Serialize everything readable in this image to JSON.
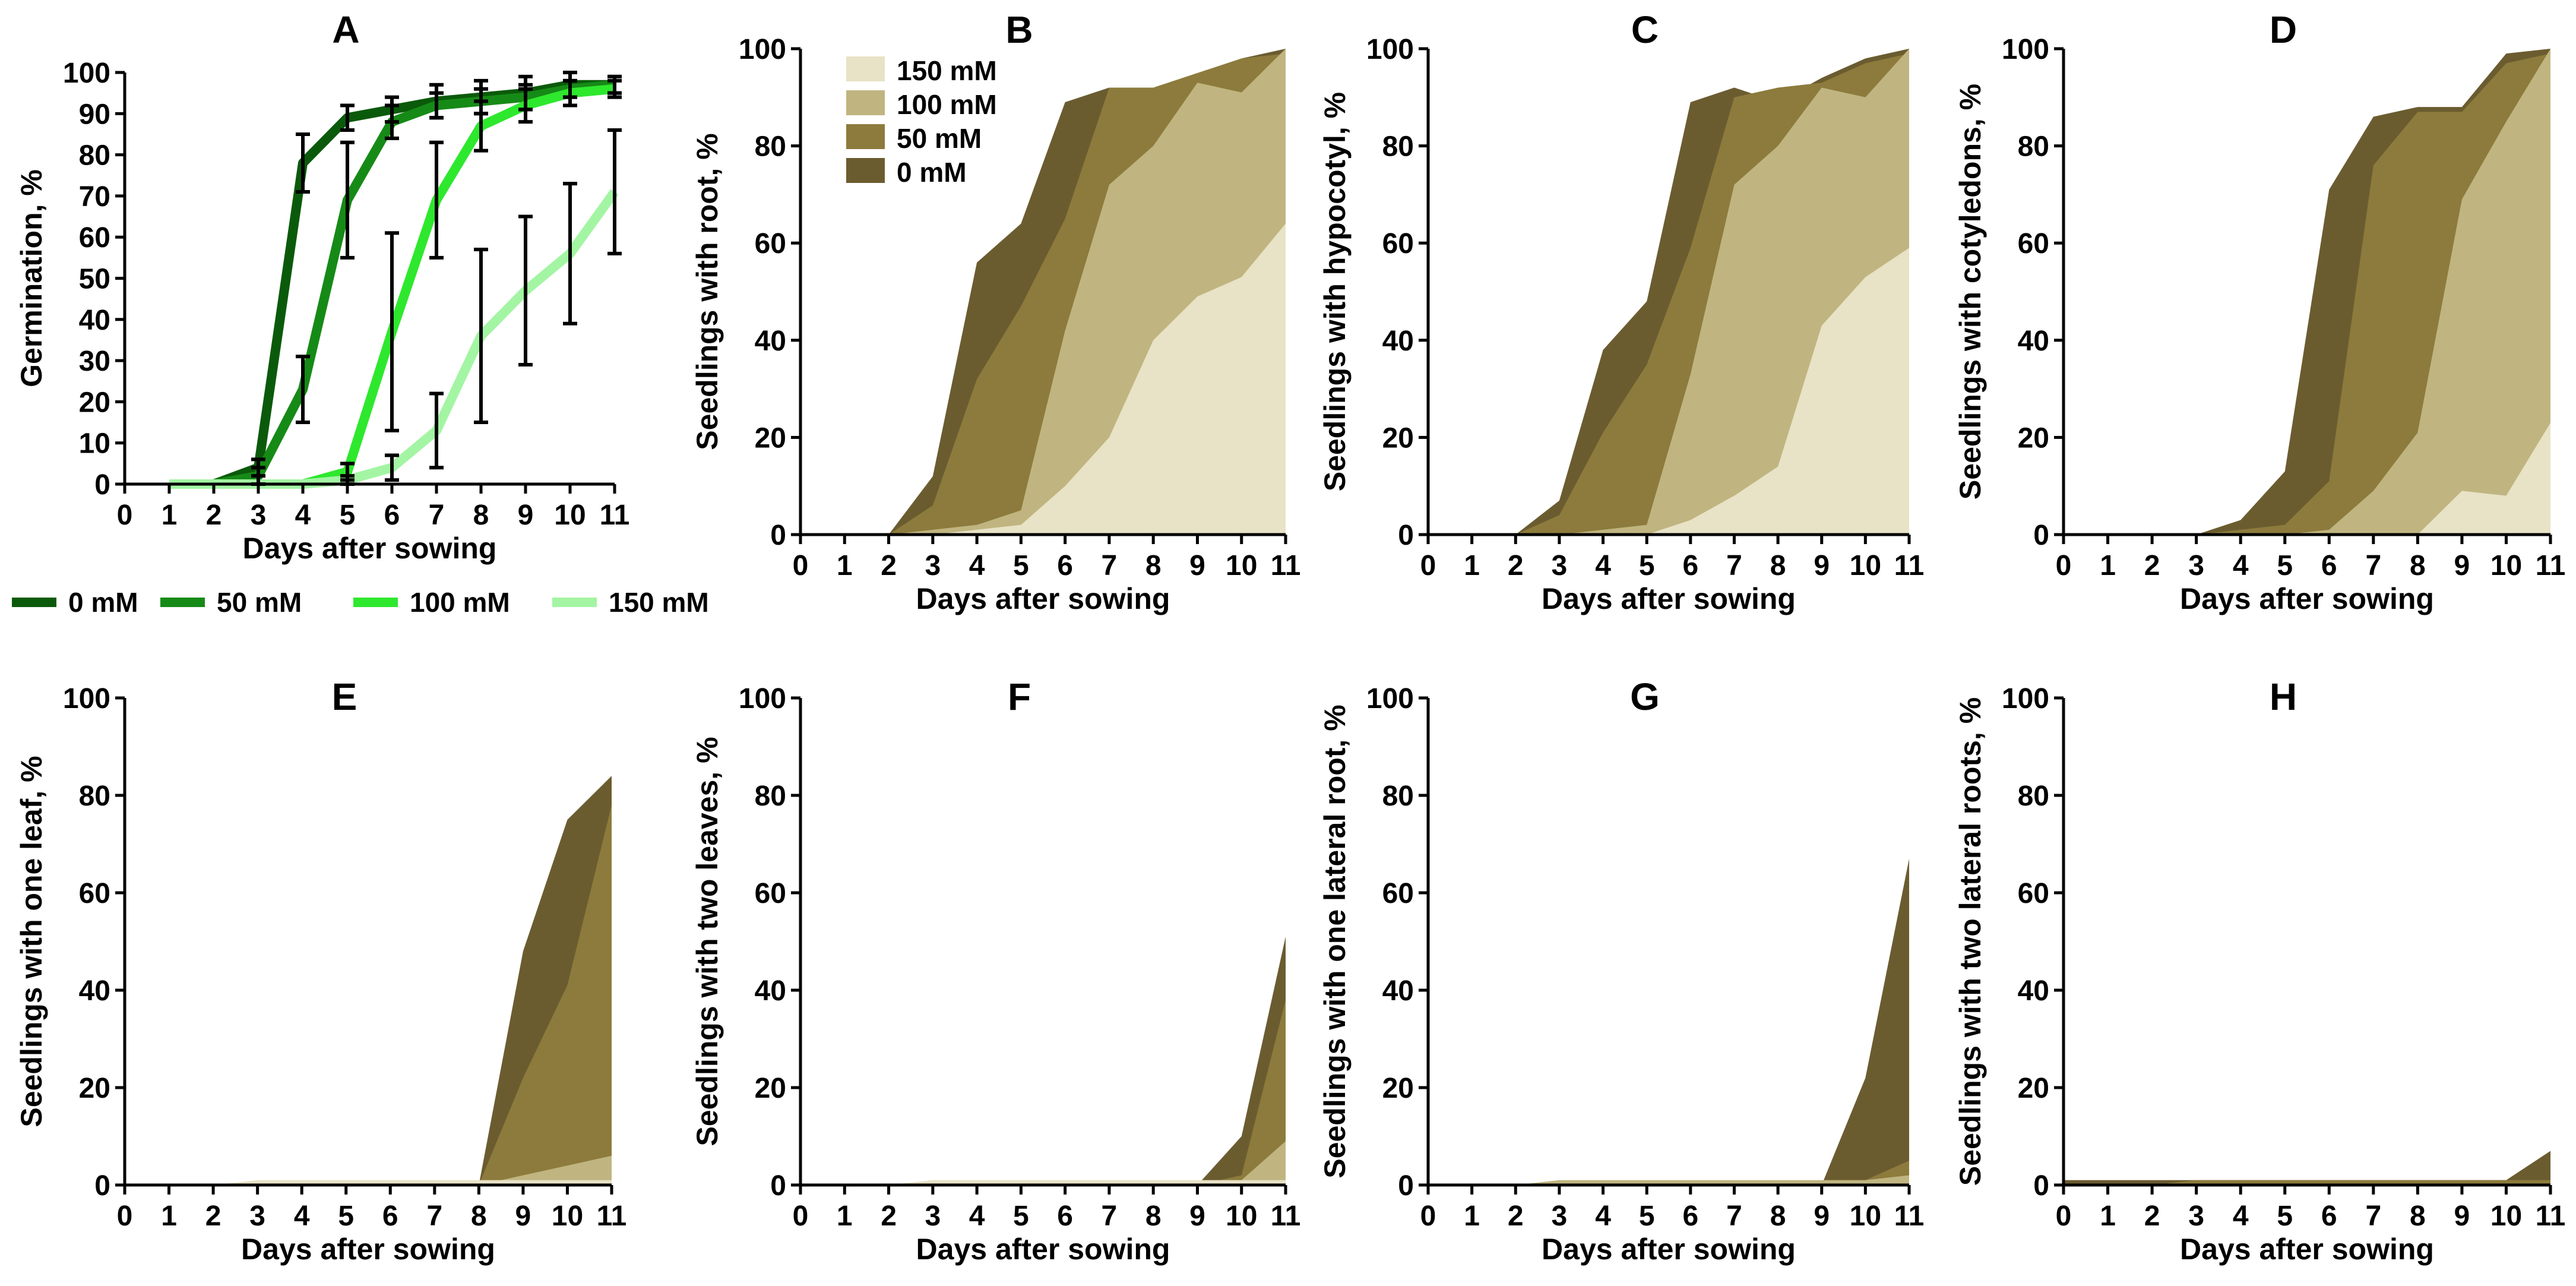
{
  "chart_data": [
    {
      "panel": "A",
      "type": "line",
      "xlabel": "Days after sowing",
      "ylabel": "Germination, %",
      "xlim": [
        0,
        11
      ],
      "ylim": [
        0,
        100
      ],
      "x_ticks": [
        0,
        1,
        2,
        3,
        4,
        5,
        6,
        7,
        8,
        9,
        10,
        11
      ],
      "y_ticks": [
        0,
        10,
        20,
        30,
        40,
        50,
        60,
        70,
        80,
        90,
        100
      ],
      "x": [
        1,
        2,
        3,
        4,
        5,
        6,
        7,
        8,
        9,
        10,
        11
      ],
      "series": [
        {
          "name": "0 mM",
          "color": "#0b5a0b",
          "values": [
            0,
            0,
            4,
            78,
            89,
            91,
            93,
            94,
            95,
            97,
            97
          ],
          "error": [
            0,
            0,
            2,
            7,
            3,
            3,
            4,
            4,
            4,
            3,
            2
          ]
        },
        {
          "name": "50 mM",
          "color": "#168a16",
          "values": [
            0,
            0,
            2,
            23,
            69,
            88,
            92,
            93,
            94,
            96,
            97
          ],
          "error": [
            0,
            0,
            2,
            8,
            14,
            4,
            3,
            3,
            3,
            2,
            2
          ]
        },
        {
          "name": "100 mM",
          "color": "#2ee82e",
          "values": [
            0,
            0,
            0,
            0,
            3,
            37,
            69,
            87,
            92,
            95,
            96
          ],
          "error": [
            0,
            0,
            0,
            0,
            2,
            24,
            14,
            6,
            4,
            3,
            2
          ]
        },
        {
          "name": "150 mM",
          "color": "#a3f5a3",
          "values": [
            0,
            0,
            0,
            0,
            1,
            4,
            13,
            36,
            47,
            56,
            71
          ],
          "error": [
            0,
            0,
            0,
            0,
            1,
            3,
            9,
            21,
            18,
            17,
            15
          ]
        }
      ],
      "legend": {
        "position": "bottom",
        "entries": [
          "0 mM",
          "50 mM",
          "100 mM",
          "150 mM"
        ]
      }
    },
    {
      "panel": "B",
      "type": "area",
      "xlabel": "Days after sowing",
      "ylabel": "Seedlings with root, %",
      "xlim": [
        0,
        11
      ],
      "ylim": [
        0,
        100
      ],
      "x_ticks": [
        0,
        1,
        2,
        3,
        4,
        5,
        6,
        7,
        8,
        9,
        10,
        11
      ],
      "y_ticks": [
        0,
        20,
        40,
        60,
        80,
        100
      ],
      "x": [
        0,
        1,
        2,
        3,
        4,
        5,
        6,
        7,
        8,
        9,
        10,
        11
      ],
      "series": [
        {
          "name": "0 mM",
          "color": "#6b5c30",
          "values": [
            0,
            0,
            0,
            12,
            56,
            64,
            89,
            92,
            89,
            94,
            98,
            100
          ]
        },
        {
          "name": "50 mM",
          "color": "#8c7b3c",
          "values": [
            0,
            0,
            0,
            6,
            32,
            47,
            65,
            92,
            92,
            95,
            98,
            99
          ]
        },
        {
          "name": "100 mM",
          "color": "#c0b580",
          "values": [
            0,
            0,
            0,
            1,
            2,
            5,
            42,
            72,
            80,
            93,
            91,
            100
          ]
        },
        {
          "name": "150 mM",
          "color": "#e8e2c6",
          "values": [
            0,
            0,
            0,
            0,
            1,
            2,
            10,
            20,
            40,
            49,
            53,
            64
          ]
        }
      ],
      "legend": {
        "position": "top-left",
        "entries": [
          "150 mM",
          "100 mM",
          "50 mM",
          "0 mM"
        ]
      }
    },
    {
      "panel": "C",
      "type": "area",
      "xlabel": "Days after sowing",
      "ylabel": "Seedlings with hypocotyl, %",
      "xlim": [
        0,
        11
      ],
      "ylim": [
        0,
        100
      ],
      "x_ticks": [
        0,
        1,
        2,
        3,
        4,
        5,
        6,
        7,
        8,
        9,
        10,
        11
      ],
      "y_ticks": [
        0,
        20,
        40,
        60,
        80,
        100
      ],
      "x": [
        0,
        1,
        2,
        3,
        4,
        5,
        6,
        7,
        8,
        9,
        10,
        11
      ],
      "series": [
        {
          "name": "0 mM",
          "color": "#6b5c30",
          "values": [
            0,
            0,
            0,
            7,
            38,
            48,
            89,
            92,
            89,
            94,
            98,
            100
          ]
        },
        {
          "name": "50 mM",
          "color": "#8c7b3c",
          "values": [
            0,
            0,
            0,
            4,
            21,
            35,
            59,
            90,
            92,
            93,
            97,
            99
          ]
        },
        {
          "name": "100 mM",
          "color": "#c0b580",
          "values": [
            0,
            0,
            0,
            0,
            1,
            2,
            33,
            72,
            80,
            92,
            90,
            100
          ]
        },
        {
          "name": "150 mM",
          "color": "#e8e2c6",
          "values": [
            0,
            0,
            0,
            0,
            0,
            0,
            3,
            8,
            14,
            43,
            53,
            59
          ]
        }
      ]
    },
    {
      "panel": "D",
      "type": "area",
      "xlabel": "Days after sowing",
      "ylabel": "Seedlings with cotyledons, %",
      "xlim": [
        0,
        11
      ],
      "ylim": [
        0,
        100
      ],
      "x_ticks": [
        0,
        1,
        2,
        3,
        4,
        5,
        6,
        7,
        8,
        9,
        10,
        11
      ],
      "y_ticks": [
        0,
        20,
        40,
        60,
        80,
        100
      ],
      "x": [
        0,
        1,
        2,
        3,
        4,
        5,
        6,
        7,
        8,
        9,
        10,
        11
      ],
      "series": [
        {
          "name": "0 mM",
          "color": "#6b5c30",
          "values": [
            0,
            0,
            0,
            0,
            3,
            13,
            71,
            86,
            88,
            88,
            99,
            100
          ]
        },
        {
          "name": "50 mM",
          "color": "#8c7b3c",
          "values": [
            0,
            0,
            0,
            0,
            1,
            2,
            11,
            76,
            87,
            87,
            97,
            99
          ]
        },
        {
          "name": "100 mM",
          "color": "#c0b580",
          "values": [
            0,
            0,
            0,
            0,
            0,
            0,
            1,
            9,
            21,
            69,
            85,
            100
          ]
        },
        {
          "name": "150 mM",
          "color": "#e8e2c6",
          "values": [
            0,
            0,
            0,
            0,
            0,
            0,
            0,
            0,
            0,
            9,
            8,
            23
          ]
        }
      ]
    },
    {
      "panel": "E",
      "type": "area",
      "xlabel": "Days after sowing",
      "ylabel": "Seedlings with one leaf, %",
      "xlim": [
        0,
        11
      ],
      "ylim": [
        0,
        100
      ],
      "x_ticks": [
        0,
        1,
        2,
        3,
        4,
        5,
        6,
        7,
        8,
        9,
        10,
        11
      ],
      "y_ticks": [
        0,
        20,
        40,
        60,
        80,
        100
      ],
      "x": [
        0,
        1,
        2,
        3,
        4,
        5,
        6,
        7,
        8,
        9,
        10,
        11
      ],
      "series": [
        {
          "name": "0 mM",
          "color": "#6b5c30",
          "values": [
            0,
            0,
            0,
            0,
            0,
            0,
            0,
            0,
            0,
            48,
            75,
            84
          ]
        },
        {
          "name": "50 mM",
          "color": "#8c7b3c",
          "values": [
            0,
            0,
            0,
            0,
            0,
            0,
            0,
            0,
            0,
            22,
            41,
            78
          ]
        },
        {
          "name": "100 mM",
          "color": "#c0b580",
          "values": [
            0,
            0,
            0,
            0,
            0,
            0,
            0,
            0,
            0,
            2,
            4,
            6
          ]
        },
        {
          "name": "150 mM",
          "color": "#e8e2c6",
          "values": [
            0,
            0,
            0,
            1,
            1,
            1,
            1,
            1,
            1,
            1,
            1,
            1
          ]
        }
      ]
    },
    {
      "panel": "F",
      "type": "area",
      "xlabel": "Days after sowing",
      "ylabel": "Seedlings with two leaves, %",
      "xlim": [
        0,
        11
      ],
      "ylim": [
        0,
        100
      ],
      "x_ticks": [
        0,
        1,
        2,
        3,
        4,
        5,
        6,
        7,
        8,
        9,
        10,
        11
      ],
      "y_ticks": [
        0,
        20,
        40,
        60,
        80,
        100
      ],
      "x": [
        0,
        1,
        2,
        3,
        4,
        5,
        6,
        7,
        8,
        9,
        10,
        11
      ],
      "series": [
        {
          "name": "0 mM",
          "color": "#6b5c30",
          "values": [
            0,
            0,
            0,
            0,
            0,
            0,
            0,
            0,
            0,
            0,
            10,
            51
          ]
        },
        {
          "name": "50 mM",
          "color": "#8c7b3c",
          "values": [
            0,
            0,
            0,
            0,
            0,
            0,
            0,
            0,
            0,
            0,
            2,
            38
          ]
        },
        {
          "name": "100 mM",
          "color": "#c0b580",
          "values": [
            0,
            0,
            0,
            0,
            0,
            0,
            0,
            0,
            0,
            0,
            1,
            9
          ]
        },
        {
          "name": "150 mM",
          "color": "#e8e2c6",
          "values": [
            0,
            0,
            0,
            1,
            1,
            1,
            1,
            1,
            1,
            1,
            1,
            1
          ]
        }
      ]
    },
    {
      "panel": "G",
      "type": "area",
      "xlabel": "Days after sowing",
      "ylabel": "Seedlings with one lateral root, %",
      "xlim": [
        0,
        11
      ],
      "ylim": [
        0,
        100
      ],
      "x_ticks": [
        0,
        1,
        2,
        3,
        4,
        5,
        6,
        7,
        8,
        9,
        10,
        11
      ],
      "y_ticks": [
        0,
        20,
        40,
        60,
        80,
        100
      ],
      "x": [
        0,
        1,
        2,
        3,
        4,
        5,
        6,
        7,
        8,
        9,
        10,
        11
      ],
      "series": [
        {
          "name": "0 mM",
          "color": "#6b5c30",
          "values": [
            0,
            0,
            0,
            0,
            0,
            0,
            0,
            0,
            0,
            0,
            22,
            67
          ]
        },
        {
          "name": "50 mM",
          "color": "#8c7b3c",
          "values": [
            0,
            0,
            0,
            0,
            0,
            0,
            0,
            0,
            0,
            0,
            1,
            5
          ]
        },
        {
          "name": "100 mM",
          "color": "#c0b580",
          "values": [
            0,
            0,
            0,
            1,
            1,
            1,
            1,
            1,
            1,
            1,
            1,
            2
          ]
        },
        {
          "name": "150 mM",
          "color": "#e8e2c6",
          "values": [
            0,
            0,
            0,
            0,
            0,
            0,
            0,
            0,
            0,
            0,
            0,
            0
          ]
        }
      ]
    },
    {
      "panel": "H",
      "type": "area",
      "xlabel": "Days after sowing",
      "ylabel": "Seedlings with two lateral roots, %",
      "xlim": [
        0,
        11
      ],
      "ylim": [
        0,
        100
      ],
      "x_ticks": [
        0,
        1,
        2,
        3,
        4,
        5,
        6,
        7,
        8,
        9,
        10,
        11
      ],
      "y_ticks": [
        0,
        20,
        40,
        60,
        80,
        100
      ],
      "x": [
        0,
        1,
        2,
        3,
        4,
        5,
        6,
        7,
        8,
        9,
        10,
        11
      ],
      "series": [
        {
          "name": "0 mM",
          "color": "#6b5c30",
          "values": [
            1,
            1,
            1,
            1,
            1,
            1,
            1,
            1,
            1,
            1,
            1,
            7
          ]
        },
        {
          "name": "50 mM",
          "color": "#8c7b3c",
          "values": [
            0,
            0,
            0,
            1,
            1,
            1,
            1,
            1,
            1,
            1,
            1,
            1
          ]
        },
        {
          "name": "100 mM",
          "color": "#c0b580",
          "values": [
            0,
            0,
            0,
            0,
            0,
            0,
            0,
            0,
            0,
            0,
            0,
            0
          ]
        },
        {
          "name": "150 mM",
          "color": "#e8e2c6",
          "values": [
            0,
            0,
            0,
            0,
            0,
            0,
            0,
            0,
            0,
            0,
            0,
            0
          ]
        }
      ]
    }
  ]
}
